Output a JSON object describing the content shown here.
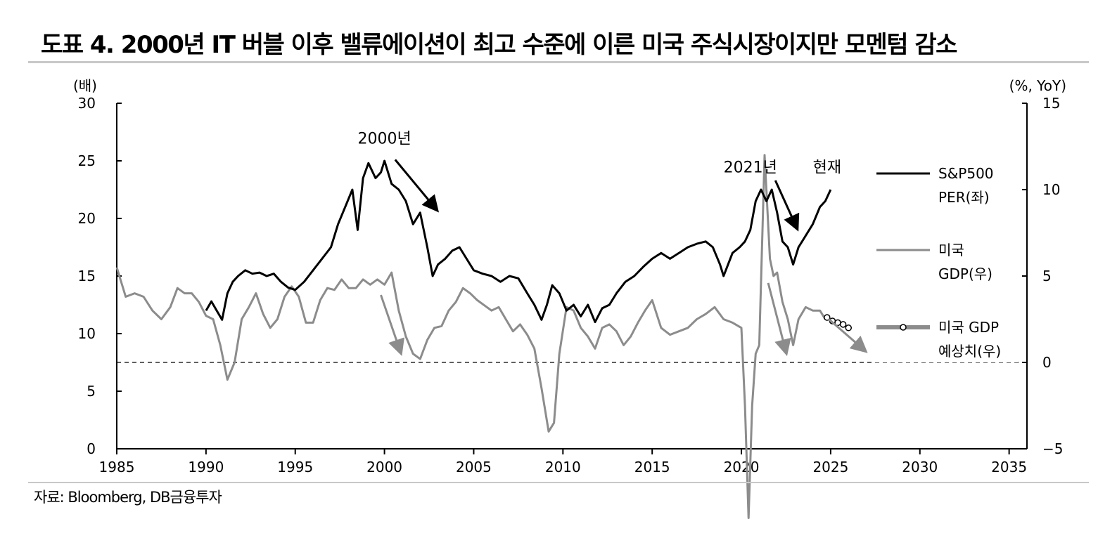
{
  "title": "도표 4. 2000년 IT 버블 이후 밸류에이션이 최고 수준에 이른 미국 주식시장이지만 모멘텀 감소",
  "source": "자료: Bloomberg, DB금융투자",
  "chart_data": {
    "type": "line",
    "x_ticks": [
      "1985",
      "1990",
      "1995",
      "2000",
      "2005",
      "2010",
      "2015",
      "2020",
      "2025",
      "2030",
      "2035"
    ],
    "xlim": [
      1985,
      2036
    ],
    "left_axis": {
      "unit": "(배)",
      "ylim": [
        0,
        30
      ],
      "ticks": [
        "0",
        "5",
        "10",
        "15",
        "20",
        "25",
        "30"
      ]
    },
    "right_axis": {
      "unit": "(%, YoY)",
      "ylim": [
        -5,
        15
      ],
      "ticks": [
        "−5",
        "0",
        "5",
        "10",
        "15"
      ]
    },
    "zero_line_right": 0,
    "grid": false,
    "legend_position": "right",
    "legend": [
      {
        "line1": "S&P500",
        "line2": "PER(좌)"
      },
      {
        "line1": "미국",
        "line2": "GDP(우)"
      },
      {
        "line1": "미국 GDP",
        "line2": "예상치(우)"
      }
    ],
    "annotations": [
      {
        "text": "2000년",
        "x": 2000.0,
        "y_left": 26.5
      },
      {
        "text": "2021년",
        "x": 2020.5,
        "y_left": 24.0
      },
      {
        "text": "현재",
        "x": 2024.8,
        "y_left": 24.0
      }
    ],
    "arrows": [
      {
        "color": "black",
        "from": [
          2000.6,
          25.1
        ],
        "to": [
          2002.9,
          20.8
        ]
      },
      {
        "color": "black",
        "from": [
          2021.9,
          23.3
        ],
        "to": [
          2023.1,
          19.2
        ]
      },
      {
        "color": "gray",
        "from_right": [
          1999.8,
          3.9
        ],
        "to_right": [
          2000.9,
          0.6
        ]
      },
      {
        "color": "gray",
        "from_right": [
          2021.5,
          4.6
        ],
        "to_right": [
          2022.5,
          0.6
        ]
      },
      {
        "color": "gray",
        "from_right": [
          2024.9,
          2.5
        ],
        "to_right": [
          2026.9,
          0.7
        ]
      }
    ],
    "colors": {
      "per": "#000000",
      "gdp": "#8c8c8c",
      "forecast": "#8c8c8c",
      "zero_line": "#000000"
    },
    "series": [
      {
        "name": "S&P500 PER(좌)",
        "axis": "left",
        "x": [
          1990.0,
          1990.3,
          1990.6,
          1990.9,
          1991.2,
          1991.5,
          1991.8,
          1992.2,
          1992.6,
          1993.0,
          1993.4,
          1993.8,
          1994.2,
          1994.6,
          1995.0,
          1995.5,
          1996.0,
          1996.5,
          1997.0,
          1997.4,
          1997.8,
          1998.2,
          1998.5,
          1998.8,
          1999.1,
          1999.5,
          1999.8,
          2000.0,
          2000.4,
          2000.8,
          2001.2,
          2001.6,
          2002.0,
          2002.4,
          2002.7,
          2003.0,
          2003.4,
          2003.8,
          2004.2,
          2004.6,
          2005.0,
          2005.5,
          2006.0,
          2006.5,
          2007.0,
          2007.5,
          2008.0,
          2008.4,
          2008.8,
          2009.1,
          2009.4,
          2009.8,
          2010.2,
          2010.6,
          2011.0,
          2011.4,
          2011.8,
          2012.2,
          2012.6,
          2013.0,
          2013.5,
          2014.0,
          2014.5,
          2015.0,
          2015.5,
          2016.0,
          2016.5,
          2017.0,
          2017.5,
          2018.0,
          2018.4,
          2018.8,
          2019.0,
          2019.5,
          2019.9,
          2020.2,
          2020.5,
          2020.8,
          2021.1,
          2021.4,
          2021.7,
          2022.0,
          2022.3,
          2022.6,
          2022.9,
          2023.2,
          2023.6,
          2024.0,
          2024.4,
          2024.7,
          2025.0
        ],
        "values": [
          12.0,
          12.8,
          12.0,
          11.2,
          13.5,
          14.5,
          15.0,
          15.5,
          15.2,
          15.3,
          15.0,
          15.2,
          14.5,
          14.0,
          13.8,
          14.5,
          15.5,
          16.5,
          17.5,
          19.5,
          21.0,
          22.5,
          19.0,
          23.5,
          24.8,
          23.5,
          24.0,
          25.0,
          23.0,
          22.5,
          21.5,
          19.5,
          20.5,
          17.5,
          15.0,
          16.0,
          16.5,
          17.2,
          17.5,
          16.5,
          15.5,
          15.2,
          15.0,
          14.5,
          15.0,
          14.8,
          13.5,
          12.5,
          11.2,
          12.5,
          14.2,
          13.5,
          12.0,
          12.5,
          11.5,
          12.5,
          11.0,
          12.2,
          12.5,
          13.5,
          14.5,
          15.0,
          15.8,
          16.5,
          17.0,
          16.5,
          17.0,
          17.5,
          17.8,
          18.0,
          17.5,
          16.0,
          15.0,
          17.0,
          17.5,
          18.0,
          19.0,
          21.5,
          22.5,
          21.5,
          22.5,
          20.5,
          18.0,
          17.5,
          16.0,
          17.5,
          18.5,
          19.5,
          21.0,
          21.5,
          22.5
        ]
      },
      {
        "name": "미국 GDP(우)",
        "axis": "right",
        "x": [
          1985.0,
          1985.5,
          1986.0,
          1986.5,
          1987.0,
          1987.5,
          1988.0,
          1988.4,
          1988.8,
          1989.2,
          1989.6,
          1990.0,
          1990.4,
          1990.8,
          1991.2,
          1991.6,
          1992.0,
          1992.4,
          1992.8,
          1993.2,
          1993.6,
          1994.0,
          1994.4,
          1994.8,
          1995.2,
          1995.6,
          1996.0,
          1996.4,
          1996.8,
          1997.2,
          1997.6,
          1998.0,
          1998.4,
          1998.8,
          1999.2,
          1999.6,
          2000.0,
          2000.4,
          2000.8,
          2001.2,
          2001.6,
          2002.0,
          2002.4,
          2002.8,
          2003.2,
          2003.6,
          2004.0,
          2004.4,
          2004.8,
          2005.2,
          2005.6,
          2006.0,
          2006.4,
          2006.8,
          2007.2,
          2007.6,
          2008.0,
          2008.4,
          2008.8,
          2009.2,
          2009.5,
          2009.8,
          2010.2,
          2010.6,
          2011.0,
          2011.4,
          2011.8,
          2012.2,
          2012.6,
          2013.0,
          2013.4,
          2013.8,
          2014.2,
          2014.6,
          2015.0,
          2015.5,
          2016.0,
          2016.5,
          2017.0,
          2017.5,
          2018.0,
          2018.5,
          2019.0,
          2019.5,
          2020.0,
          2020.2,
          2020.4,
          2020.6,
          2020.8,
          2021.0,
          2021.3,
          2021.6,
          2021.8,
          2022.0,
          2022.3,
          2022.6,
          2022.9,
          2023.2,
          2023.6,
          2024.0,
          2024.4,
          2024.7
        ],
        "values": [
          5.5,
          3.8,
          4.0,
          3.8,
          3.0,
          2.5,
          3.2,
          4.3,
          4.0,
          4.0,
          3.5,
          2.7,
          2.5,
          1.0,
          -1.0,
          0.0,
          2.5,
          3.2,
          4.0,
          2.8,
          2.0,
          2.5,
          3.8,
          4.4,
          3.8,
          2.3,
          2.3,
          3.6,
          4.3,
          4.2,
          4.8,
          4.3,
          4.3,
          4.8,
          4.5,
          4.8,
          4.5,
          5.2,
          3.0,
          1.5,
          0.5,
          0.2,
          1.3,
          2.0,
          2.1,
          3.0,
          3.5,
          4.3,
          4.0,
          3.6,
          3.3,
          3.0,
          3.2,
          2.5,
          1.8,
          2.2,
          1.6,
          0.8,
          -1.5,
          -4.0,
          -3.5,
          0.5,
          3.2,
          3.0,
          2.0,
          1.5,
          0.8,
          2.0,
          2.2,
          1.8,
          1.0,
          1.5,
          2.3,
          3.0,
          3.6,
          2.0,
          1.6,
          1.8,
          2.0,
          2.5,
          2.8,
          3.2,
          2.5,
          2.3,
          2.0,
          -2.5,
          -9.0,
          -2.5,
          0.5,
          1.0,
          12.0,
          6.0,
          5.0,
          5.2,
          3.5,
          2.5,
          1.0,
          2.5,
          3.2,
          3.0,
          3.0,
          2.5
        ]
      },
      {
        "name": "미국 GDP 예상치(우)",
        "axis": "right",
        "x": [
          2024.8,
          2025.1,
          2025.4,
          2025.7,
          2026.0
        ],
        "values": [
          2.6,
          2.4,
          2.3,
          2.2,
          2.0
        ]
      }
    ]
  }
}
